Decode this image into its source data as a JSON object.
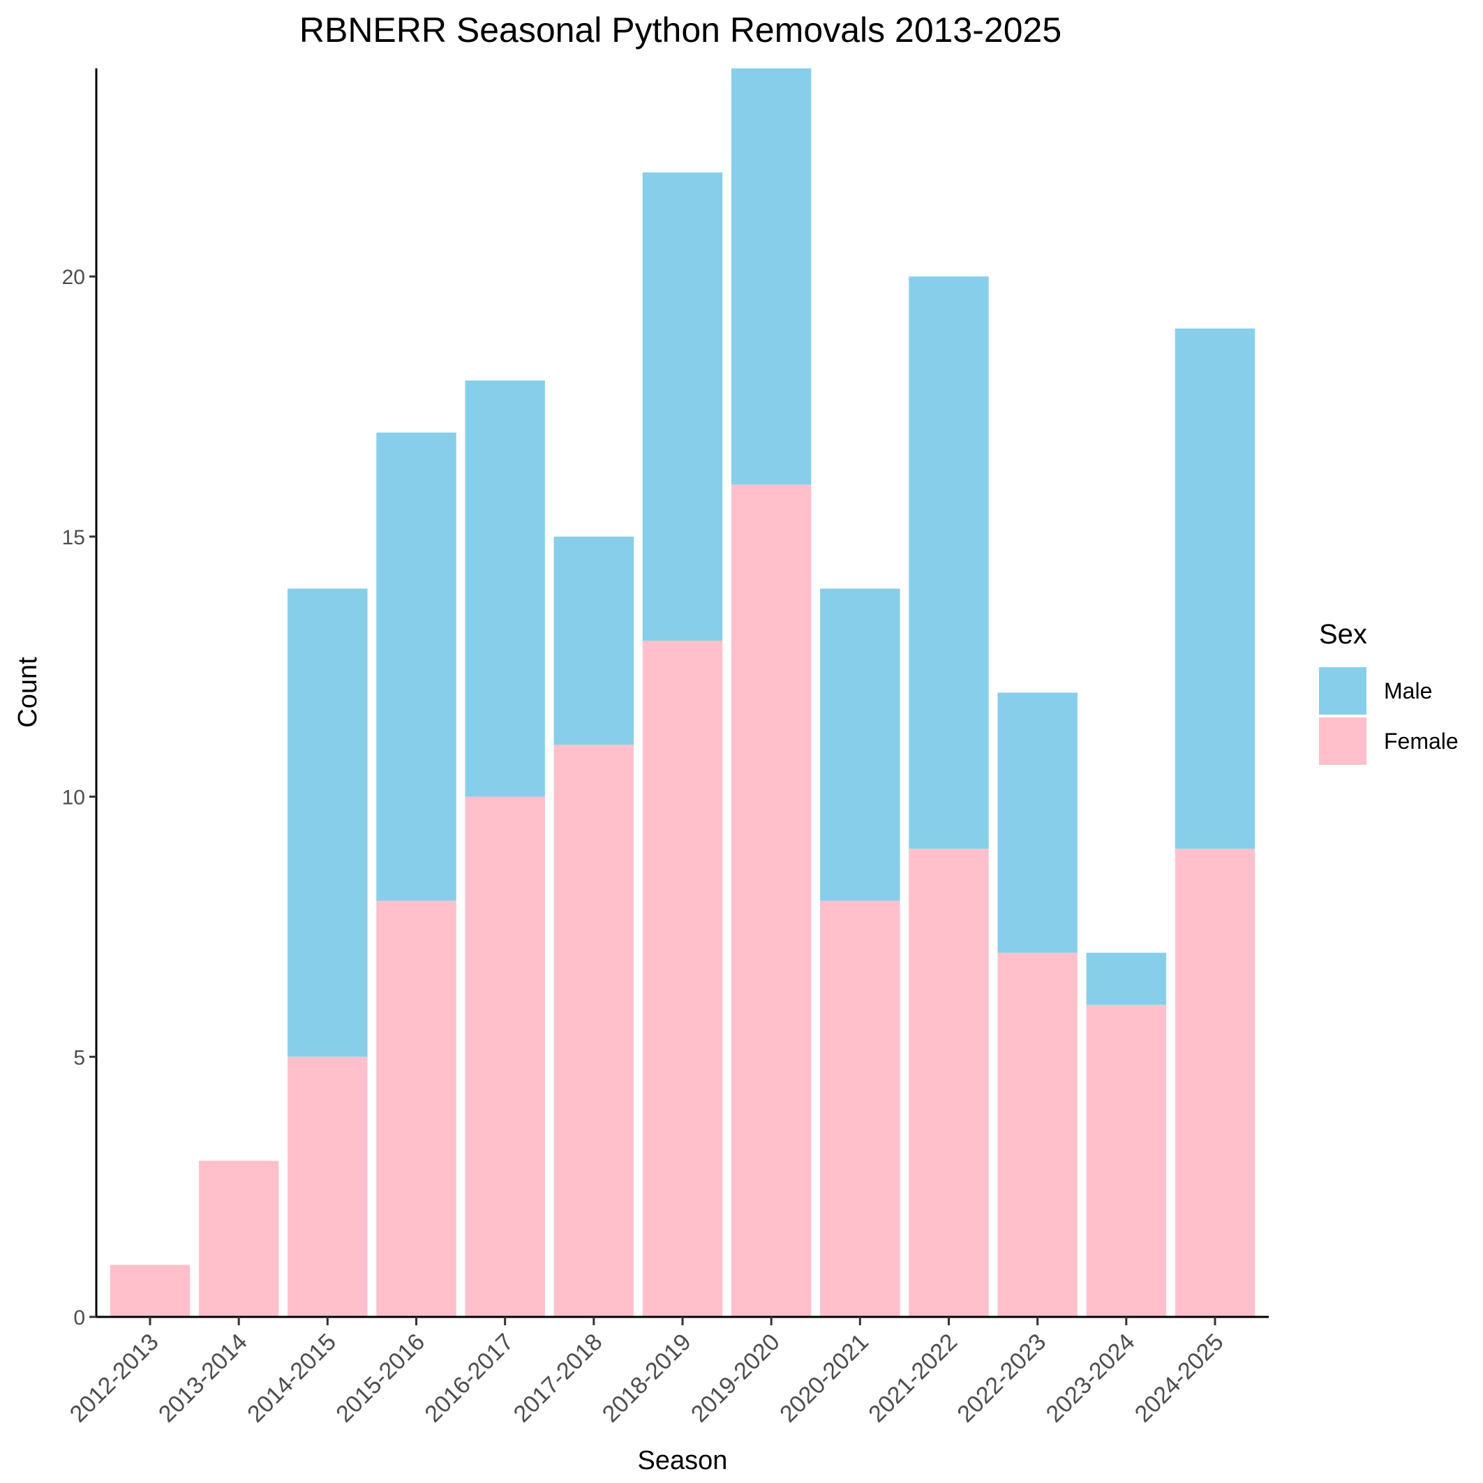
{
  "chart_data": {
    "type": "bar",
    "stacked": true,
    "title": "RBNERR Seasonal Python Removals 2013-2025",
    "xlabel": "Season",
    "ylabel": "Count",
    "categories": [
      "2012-2013",
      "2013-2014",
      "2014-2015",
      "2015-2016",
      "2016-2017",
      "2017-2018",
      "2018-2019",
      "2019-2020",
      "2020-2021",
      "2021-2022",
      "2022-2023",
      "2023-2024",
      "2024-2025"
    ],
    "series": [
      {
        "name": "Female",
        "color": "#FFC0CB",
        "values": [
          1,
          3,
          5,
          8,
          10,
          11,
          13,
          16,
          8,
          9,
          7,
          6,
          9
        ]
      },
      {
        "name": "Male",
        "color": "#87CEEB",
        "values": [
          0,
          0,
          9,
          9,
          8,
          4,
          9,
          8,
          6,
          11,
          5,
          1,
          10
        ]
      }
    ],
    "ylim": [
      0,
      24
    ],
    "yticks": [
      0,
      5,
      10,
      15,
      20
    ],
    "grid": false,
    "legend": {
      "title": "Sex",
      "position": "right",
      "entries": [
        {
          "label": "Male",
          "color": "#87CEEB"
        },
        {
          "label": "Female",
          "color": "#FFC0CB"
        }
      ]
    }
  }
}
